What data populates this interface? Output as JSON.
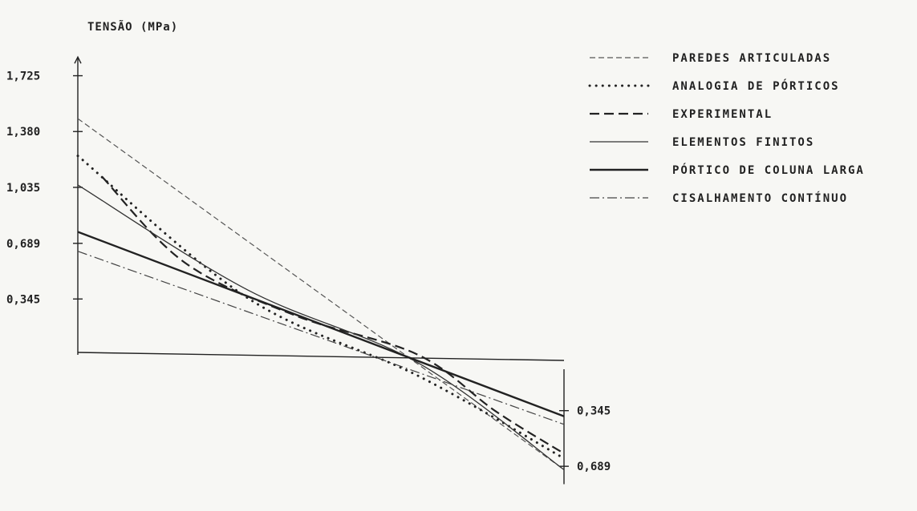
{
  "chart_data": {
    "type": "line",
    "ylabel": "TENSÃO (MPa)",
    "y_ticks_left": [
      "1,725",
      "1,380",
      "1,035",
      "0,689",
      "0,345"
    ],
    "y_ticks_right": [
      "0,345",
      "0,689"
    ],
    "x": [
      0,
      1
    ],
    "ylim": [
      -0.75,
      1.9
    ],
    "legend_position": "top-right",
    "series": [
      {
        "name": "PAREDES ARTICULADAS",
        "style": "dashed-light",
        "points": [
          [
            0,
            1.46
          ],
          [
            1,
            -0.71
          ]
        ]
      },
      {
        "name": "ANALOGIA DE PÓRTICOS",
        "style": "dotted",
        "points": [
          [
            0,
            1.23
          ],
          [
            0.35,
            0.35
          ],
          [
            0.7,
            -0.13
          ],
          [
            1,
            -0.64
          ]
        ]
      },
      {
        "name": "EXPERIMENTAL",
        "style": "dashed-heavy",
        "points": [
          [
            0.05,
            1.1
          ],
          [
            0.22,
            0.57
          ],
          [
            0.45,
            0.24
          ],
          [
            0.7,
            0.0
          ],
          [
            0.86,
            -0.35
          ],
          [
            1,
            -0.61
          ]
        ]
      },
      {
        "name": "ELEMENTOS FINITOS",
        "style": "solid-thin",
        "points": [
          [
            0,
            1.05
          ],
          [
            0.35,
            0.4
          ],
          [
            0.7,
            -0.05
          ],
          [
            1,
            -0.71
          ]
        ]
      },
      {
        "name": "PÓRTICO DE COLUNA LARGA",
        "style": "solid-heavy",
        "points": [
          [
            0,
            0.76
          ],
          [
            1,
            -0.38
          ]
        ]
      },
      {
        "name": "CISALHAMENTO CONTÍNUO",
        "style": "dashdot",
        "points": [
          [
            0,
            0.64
          ],
          [
            1,
            -0.43
          ]
        ]
      }
    ]
  }
}
